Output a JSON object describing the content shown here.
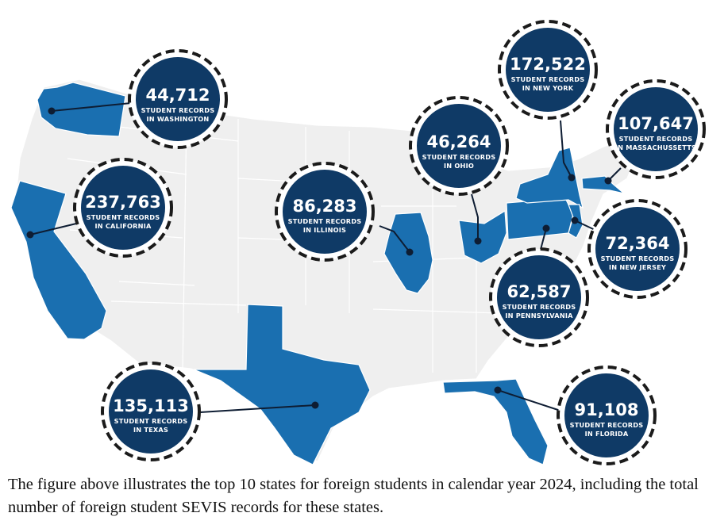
{
  "map": {
    "highlight_color": "#1a6fb0",
    "other_states_color": "#efefef",
    "badge_color": "#0f3a66",
    "states": [
      {
        "id": "washington",
        "count": "44,712",
        "line1": "STUDENT RECORDS",
        "line2": "IN WASHINGTON"
      },
      {
        "id": "california",
        "count": "237,763",
        "line1": "STUDENT RECORDS",
        "line2": "IN CALIFORNIA"
      },
      {
        "id": "illinois",
        "count": "86,283",
        "line1": "STUDENT RECORDS",
        "line2": "IN ILLINOIS"
      },
      {
        "id": "ohio",
        "count": "46,264",
        "line1": "STUDENT RECORDS",
        "line2": "IN OHIO"
      },
      {
        "id": "new-york",
        "count": "172,522",
        "line1": "STUDENT RECORDS",
        "line2": "IN NEW YORK"
      },
      {
        "id": "massachusetts",
        "count": "107,647",
        "line1": "STUDENT RECORDS",
        "line2": "IN MASSACHUSSETTS"
      },
      {
        "id": "new-jersey",
        "count": "72,364",
        "line1": "STUDENT RECORDS",
        "line2": "IN NEW JERSEY"
      },
      {
        "id": "pennsylvania",
        "count": "62,587",
        "line1": "STUDENT RECORDS",
        "line2": "IN PENNSYLVANIA"
      },
      {
        "id": "texas",
        "count": "135,113",
        "line1": "STUDENT RECORDS",
        "line2": "IN TEXAS"
      },
      {
        "id": "florida",
        "count": "91,108",
        "line1": "STUDENT RECORDS",
        "line2": "IN FLORIDA"
      }
    ]
  },
  "caption": "The figure above illustrates the top 10 states for foreign students in calendar year 2024, including the total number of foreign student SEVIS records for these states."
}
